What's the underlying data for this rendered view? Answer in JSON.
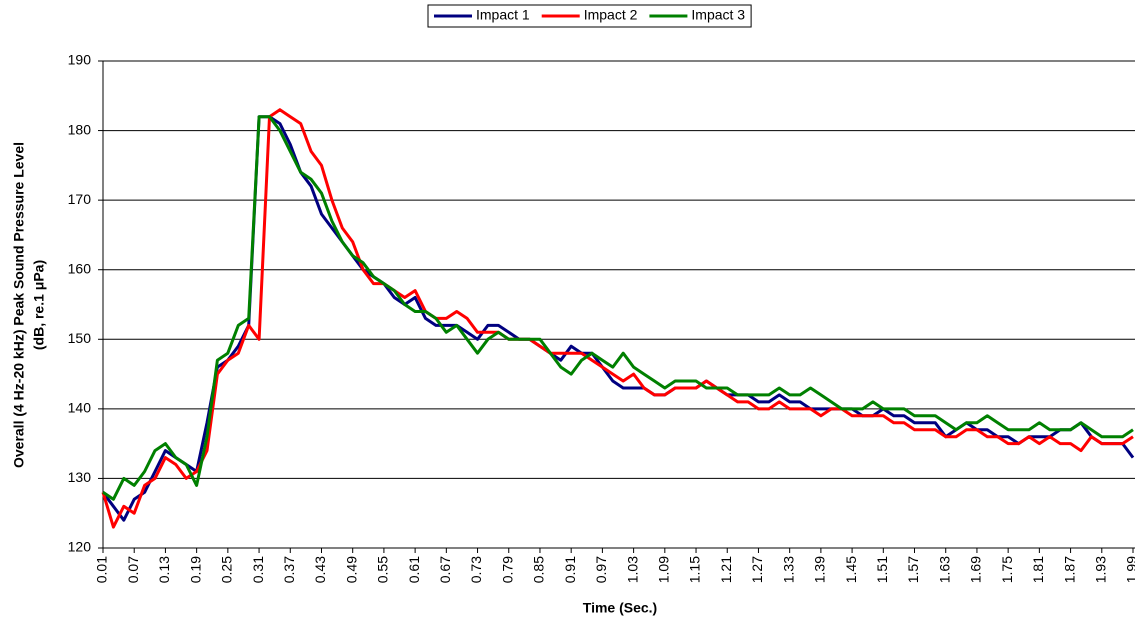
{
  "chart_data": {
    "type": "line",
    "xlabel": "Time (Sec.)",
    "ylabel": [
      "Overall (4 Hz-20 kHz) Peak Sound Pressure Level",
      "(dB, re.1 μPa)"
    ],
    "x": [
      0.01,
      0.03,
      0.05,
      0.07,
      0.09,
      0.11,
      0.13,
      0.15,
      0.17,
      0.19,
      0.21,
      0.23,
      0.25,
      0.27,
      0.29,
      0.31,
      0.33,
      0.35,
      0.37,
      0.39,
      0.41,
      0.43,
      0.45,
      0.47,
      0.49,
      0.51,
      0.53,
      0.55,
      0.57,
      0.59,
      0.61,
      0.63,
      0.65,
      0.67,
      0.69,
      0.71,
      0.73,
      0.75,
      0.77,
      0.79,
      0.81,
      0.83,
      0.85,
      0.87,
      0.89,
      0.91,
      0.93,
      0.95,
      0.97,
      0.99,
      1.01,
      1.03,
      1.05,
      1.07,
      1.09,
      1.11,
      1.13,
      1.15,
      1.17,
      1.19,
      1.21,
      1.23,
      1.25,
      1.27,
      1.29,
      1.31,
      1.33,
      1.35,
      1.37,
      1.39,
      1.41,
      1.43,
      1.45,
      1.47,
      1.49,
      1.51,
      1.53,
      1.55,
      1.57,
      1.59,
      1.61,
      1.63,
      1.65,
      1.67,
      1.69,
      1.71,
      1.73,
      1.75,
      1.77,
      1.79,
      1.81,
      1.83,
      1.85,
      1.87,
      1.89,
      1.91,
      1.93,
      1.95,
      1.97,
      1.99
    ],
    "series": [
      {
        "name": "Impact 1",
        "color": "#000080",
        "values": [
          128,
          126,
          124,
          127,
          128,
          131,
          134,
          133,
          132,
          131,
          138,
          146,
          147,
          149,
          152,
          182,
          182,
          181,
          178,
          174,
          172,
          168,
          166,
          164,
          162,
          160,
          159,
          158,
          156,
          155,
          156,
          153,
          152,
          152,
          152,
          151,
          150,
          152,
          152,
          151,
          150,
          150,
          149,
          148,
          147,
          149,
          148,
          148,
          146,
          144,
          143,
          143,
          143,
          142,
          142,
          143,
          143,
          143,
          144,
          143,
          142,
          142,
          142,
          141,
          141,
          142,
          141,
          141,
          140,
          140,
          140,
          140,
          140,
          139,
          139,
          140,
          139,
          139,
          138,
          138,
          138,
          136,
          137,
          138,
          137,
          137,
          136,
          136,
          135,
          136,
          136,
          136,
          137,
          137,
          138,
          136,
          135,
          135,
          135,
          133
        ]
      },
      {
        "name": "Impact 2",
        "color": "#ff0000",
        "values": [
          128,
          123,
          126,
          125,
          129,
          130,
          133,
          132,
          130,
          131,
          134,
          145,
          147,
          148,
          152,
          150,
          182,
          183,
          182,
          181,
          177,
          175,
          170,
          166,
          164,
          160,
          158,
          158,
          157,
          156,
          157,
          154,
          153,
          153,
          154,
          153,
          151,
          151,
          151,
          150,
          150,
          150,
          149,
          148,
          148,
          148,
          148,
          147,
          146,
          145,
          144,
          145,
          143,
          142,
          142,
          143,
          143,
          143,
          144,
          143,
          142,
          141,
          141,
          140,
          140,
          141,
          140,
          140,
          140,
          139,
          140,
          140,
          139,
          139,
          139,
          139,
          138,
          138,
          137,
          137,
          137,
          136,
          136,
          137,
          137,
          136,
          136,
          135,
          135,
          136,
          135,
          136,
          135,
          135,
          134,
          136,
          135,
          135,
          135,
          136
        ]
      },
      {
        "name": "Impact 3",
        "color": "#008000",
        "values": [
          128,
          127,
          130,
          129,
          131,
          134,
          135,
          133,
          132,
          129,
          136,
          147,
          148,
          152,
          153,
          182,
          182,
          180,
          177,
          174,
          173,
          171,
          167,
          164,
          162,
          161,
          159,
          158,
          157,
          155,
          154,
          154,
          153,
          151,
          152,
          150,
          148,
          150,
          151,
          150,
          150,
          150,
          150,
          148,
          146,
          145,
          147,
          148,
          147,
          146,
          148,
          146,
          145,
          144,
          143,
          144,
          144,
          144,
          143,
          143,
          143,
          142,
          142,
          142,
          142,
          143,
          142,
          142,
          143,
          142,
          141,
          140,
          140,
          140,
          141,
          140,
          140,
          140,
          139,
          139,
          139,
          138,
          137,
          138,
          138,
          139,
          138,
          137,
          137,
          137,
          138,
          137,
          137,
          137,
          138,
          137,
          136,
          136,
          136,
          137
        ]
      }
    ],
    "xlim": [
      0.01,
      1.99
    ],
    "xticks": [
      0.01,
      0.07,
      0.13,
      0.19,
      0.25,
      0.31,
      0.37,
      0.43,
      0.49,
      0.55,
      0.61,
      0.67,
      0.73,
      0.79,
      0.85,
      0.91,
      0.97,
      1.03,
      1.09,
      1.15,
      1.21,
      1.27,
      1.33,
      1.39,
      1.45,
      1.51,
      1.57,
      1.63,
      1.69,
      1.75,
      1.81,
      1.87,
      1.93,
      1.99
    ],
    "ylim": [
      120,
      190
    ],
    "yticks": [
      120,
      130,
      140,
      150,
      160,
      170,
      180,
      190
    ],
    "grid": true,
    "legend": "top"
  }
}
